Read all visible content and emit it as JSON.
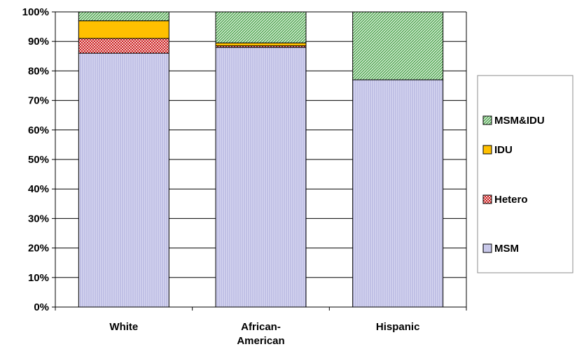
{
  "chart_data": {
    "type": "bar",
    "stacked": true,
    "percent": true,
    "categories": [
      [
        "White"
      ],
      [
        "African-",
        "American"
      ],
      [
        "Hispanic"
      ]
    ],
    "series": [
      {
        "name": "MSM",
        "values": [
          86,
          88,
          77
        ],
        "color": "#c8c8ec",
        "pattern": "vertical-lines"
      },
      {
        "name": "Hetero",
        "values": [
          5,
          0.5,
          0
        ],
        "color": "#d42020",
        "pattern": "grid"
      },
      {
        "name": "IDU",
        "values": [
          6,
          1,
          0
        ],
        "color": "#ffc000",
        "pattern": "solid"
      },
      {
        "name": "MSM&IDU",
        "values": [
          3,
          10.5,
          23
        ],
        "color": "#3f9b3f",
        "pattern": "diagonal"
      }
    ],
    "ylim": [
      0,
      100
    ],
    "yticks": [
      "0%",
      "10%",
      "20%",
      "30%",
      "40%",
      "50%",
      "60%",
      "70%",
      "80%",
      "90%",
      "100%"
    ],
    "grid": true,
    "legend_order": [
      "MSM&IDU",
      "IDU",
      "Hetero",
      "MSM"
    ],
    "legend_position": "right"
  }
}
